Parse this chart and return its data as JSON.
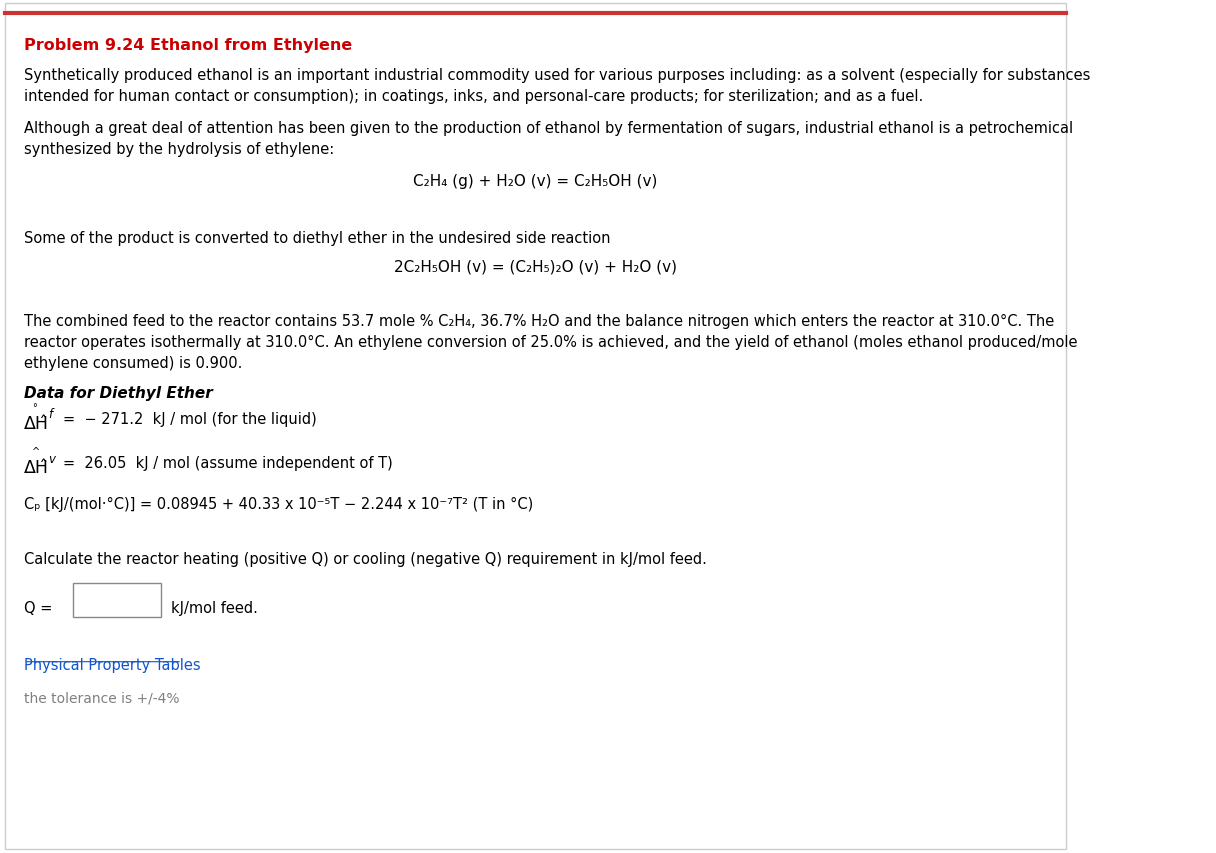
{
  "title": "Problem 9.24 Ethanol from Ethylene",
  "title_color": "#cc0000",
  "background_color": "#ffffff",
  "border_color": "#cccccc",
  "text_color": "#000000",
  "link_color": "#1155cc",
  "gray_color": "#808080",
  "para1": "Synthetically produced ethanol is an important industrial commodity used for various purposes including: as a solvent (especially for substances\nintended for human contact or consumption); in coatings, inks, and personal-care products; for sterilization; and as a fuel.",
  "para2": "Although a great deal of attention has been given to the production of ethanol by fermentation of sugars, industrial ethanol is a petrochemical\nsynthesized by the hydrolysis of ethylene:",
  "eq1": "C₂H₄ (g) + H₂O (v) = C₂H₅OH (v)",
  "para3": "Some of the product is converted to diethyl ether in the undesired side reaction",
  "eq2": "2C₂H₅OH (v) = (C₂H₅)₂O (v) + H₂O (v)",
  "para4": "The combined feed to the reactor contains 53.7 mole % C₂H₄, 36.7% H₂O and the balance nitrogen which enters the reactor at 310.0°C. The\nreactor operates isothermally at 310.0°C. An ethylene conversion of 25.0% is achieved, and the yield of ethanol (moles ethanol produced/mole\nethylene consumed) is 0.900.",
  "section_title": "Data for Diethyl Ether",
  "dHf_hat_super": "°",
  "dHf_main": "ΔĤ",
  "dHf_sub": "f",
  "dHf_rest": "=  − 271.2  kJ / mol (for the liquid)",
  "dHv_main": "ΔĤ",
  "dHv_sub": "v",
  "dHv_rest": "=  26.05  kJ / mol (assume independent of T)",
  "cp_line": "Cₚ [kJ/(mol·°C)] = 0.08945 + 40.33 x 10⁻⁵T − 2.244 x 10⁻⁷T² (T in °C)",
  "para5": "Calculate the reactor heating (positive Q) or cooling (negative Q) requirement in kJ/mol feed.",
  "q_label": "Q = ",
  "q_suffix": "kJ/mol feed.",
  "link_text": "Physical Property Tables",
  "tolerance_text": "the tolerance is +/-4%",
  "top_line_color": "#cc3333",
  "input_box_color": "#888888"
}
